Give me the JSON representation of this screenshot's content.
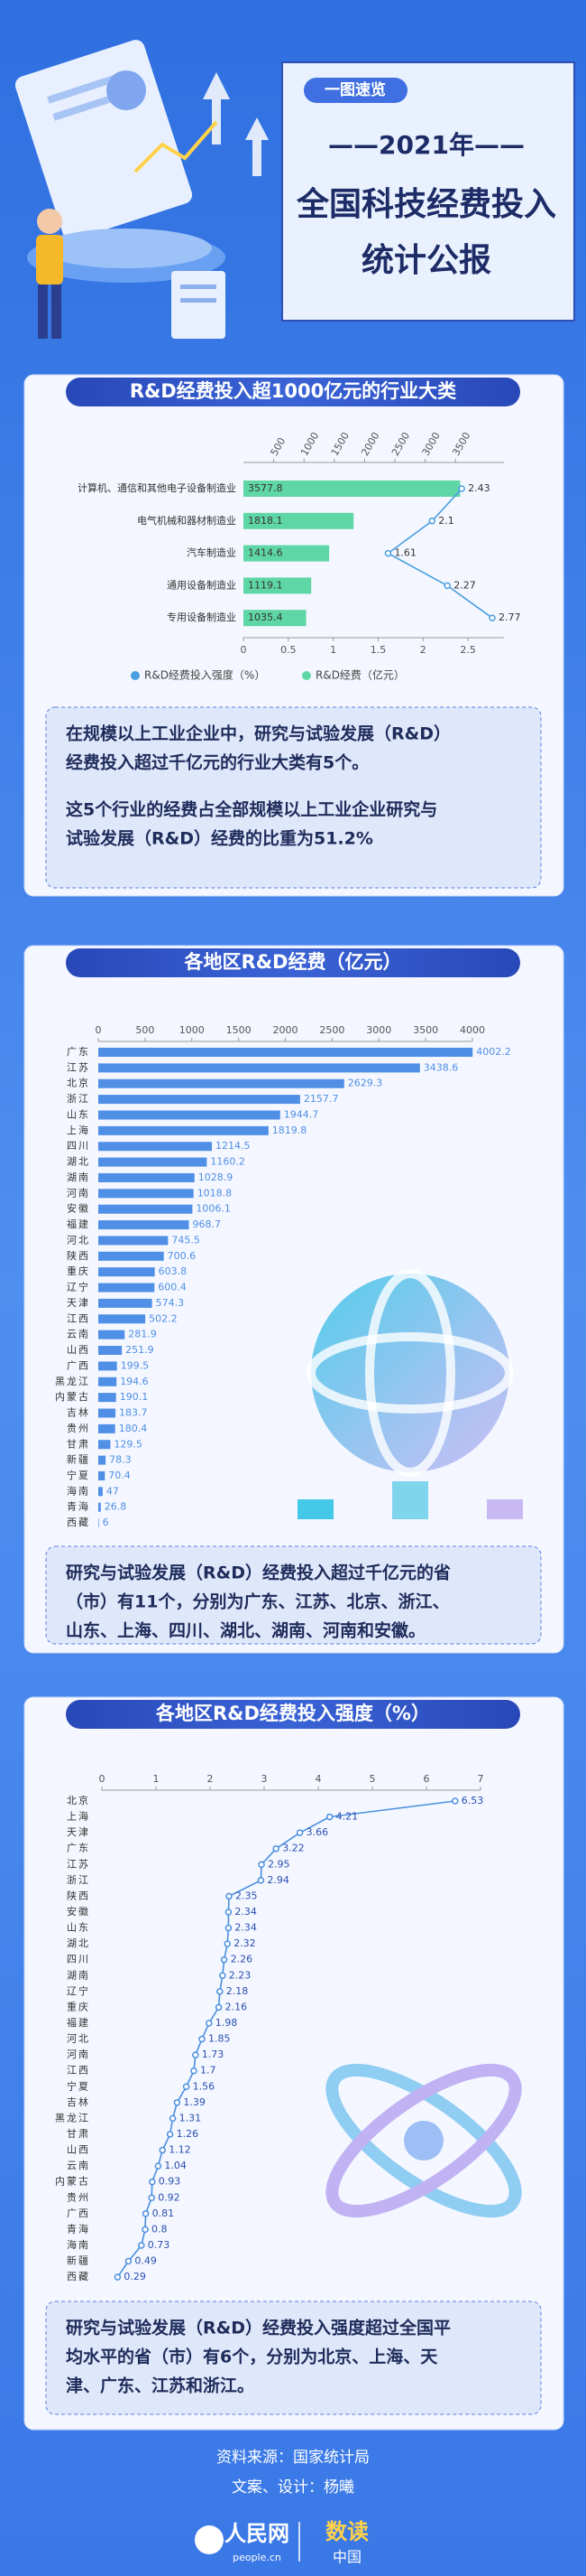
{
  "header": {
    "tag": "一图速览",
    "year": "——2021年——",
    "title_lines": [
      "全国科技经费投入",
      "统计公报"
    ]
  },
  "chart_data": [
    {
      "type": "bar",
      "orientation": "horizontal",
      "title": "R&D经费投入超1000亿元的行业大类",
      "categories": [
        "计算机、通信和其他电子设备制造业",
        "电气机械和器材制造业",
        "汽车制造业",
        "通用设备制造业",
        "专用设备制造业"
      ],
      "series": [
        {
          "name": "R&D经费投入强度（%）",
          "type": "line",
          "color": "#4a9fe0",
          "values": [
            2.43,
            2.1,
            1.61,
            2.27,
            2.77
          ]
        },
        {
          "name": "R&D经费（亿元）",
          "type": "bar",
          "axis": "x2",
          "color": "#5fd6a6",
          "values": [
            3577.8,
            1818.1,
            1414.6,
            1119.1,
            1035.4
          ]
        }
      ],
      "xlim": [
        0,
        2.9
      ],
      "xticks": [
        0,
        0.5,
        1,
        1.5,
        2,
        2.5
      ],
      "x2lim": [
        0,
        4300
      ],
      "x2ticks": [
        500,
        1000,
        1500,
        2000,
        2500,
        3000,
        3500
      ],
      "legend": "bottom"
    },
    {
      "type": "bar",
      "orientation": "horizontal",
      "title": "各地区R&D经费（亿元）",
      "categories": [
        "广东",
        "江苏",
        "北京",
        "浙江",
        "山东",
        "上海",
        "四川",
        "湖北",
        "湖南",
        "河南",
        "安徽",
        "福建",
        "河北",
        "陕西",
        "重庆",
        "辽宁",
        "天津",
        "江西",
        "云南",
        "山西",
        "广西",
        "黑龙江",
        "内蒙古",
        "吉林",
        "贵州",
        "甘肃",
        "新疆",
        "宁夏",
        "海南",
        "青海",
        "西藏"
      ],
      "values": [
        4002.2,
        3438.6,
        2629.3,
        2157.7,
        1944.7,
        1819.8,
        1214.5,
        1160.2,
        1028.9,
        1018.8,
        1006.1,
        968.7,
        745.5,
        700.6,
        603.8,
        600.4,
        574.3,
        502.2,
        281.9,
        251.9,
        199.5,
        194.6,
        190.1,
        183.7,
        180.4,
        129.5,
        78.3,
        70.4,
        47,
        26.8,
        6
      ],
      "color": "#4f8fe6",
      "xlim": [
        0,
        4000
      ],
      "xticks": [
        0,
        500,
        1000,
        1500,
        2000,
        2500,
        3000,
        3500,
        4000
      ]
    },
    {
      "type": "line",
      "orientation": "horizontal",
      "title": "各地区R&D经费投入强度（%）",
      "categories": [
        "北京",
        "上海",
        "天津",
        "广东",
        "江苏",
        "浙江",
        "陕西",
        "安徽",
        "山东",
        "湖北",
        "四川",
        "湖南",
        "辽宁",
        "重庆",
        "福建",
        "河北",
        "河南",
        "江西",
        "宁夏",
        "吉林",
        "黑龙江",
        "甘肃",
        "山西",
        "云南",
        "内蒙古",
        "贵州",
        "广西",
        "青海",
        "海南",
        "新疆",
        "西藏"
      ],
      "values": [
        6.53,
        4.21,
        3.66,
        3.22,
        2.95,
        2.94,
        2.35,
        2.34,
        2.34,
        2.32,
        2.26,
        2.23,
        2.18,
        2.16,
        1.98,
        1.85,
        1.73,
        1.7,
        1.56,
        1.39,
        1.31,
        1.26,
        1.12,
        1.04,
        0.93,
        0.92,
        0.81,
        0.8,
        0.73,
        0.49,
        0.29
      ],
      "color": "#4a8fe0",
      "xlim": [
        0,
        7
      ],
      "xticks": [
        0,
        1,
        2,
        3,
        4,
        5,
        6,
        7
      ]
    }
  ],
  "notes": [
    [
      [
        "在规模以上工业企业中，研究与试验发展（R&D）",
        "经费投入超过千亿元的行业大类有5个。"
      ],
      [
        "这5个行业的经费占全部规模以上工业企业研究与",
        "试验发展（R&D）经费的比重为51.2%"
      ]
    ],
    [
      [
        "研究与试验发展（R&D）经费投入超过千亿元的省",
        "（市）有11个，分别为广东、江苏、北京、浙江、",
        "山东、上海、四川、湖北、湖南、河南和安徽。"
      ]
    ],
    [
      [
        "研究与试验发展（R&D）经费投入强度超过全国平",
        "均水平的省（市）有6个，分别为北京、上海、天",
        "津、广东、江苏和浙江。"
      ]
    ]
  ],
  "footer": {
    "source": "资料来源：国家统计局",
    "credits": "文案、设计：杨曦",
    "logos": [
      "人民网",
      "people.cn",
      "数读",
      "中国"
    ]
  }
}
